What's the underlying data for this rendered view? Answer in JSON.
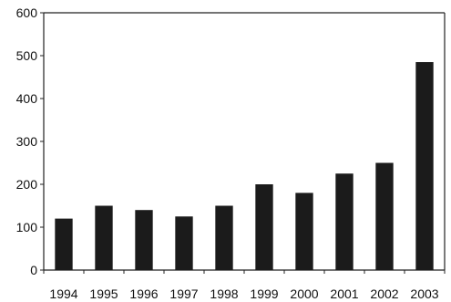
{
  "chart_data": {
    "type": "bar",
    "categories": [
      "1994",
      "1995",
      "1996",
      "1997",
      "1998",
      "1999",
      "2000",
      "2001",
      "2002",
      "2003"
    ],
    "values": [
      120,
      150,
      140,
      125,
      150,
      200,
      180,
      225,
      250,
      485
    ],
    "ylim": [
      0,
      600
    ],
    "yticks": [
      0,
      100,
      200,
      300,
      400,
      500,
      600
    ],
    "ytick_labels": [
      "0",
      "100",
      "200",
      "300",
      "400",
      "500",
      "600"
    ],
    "grid": false,
    "legend": "none",
    "colors": {
      "bar": "#1b1b1b",
      "axis": "#222222",
      "text": "#111111"
    }
  }
}
